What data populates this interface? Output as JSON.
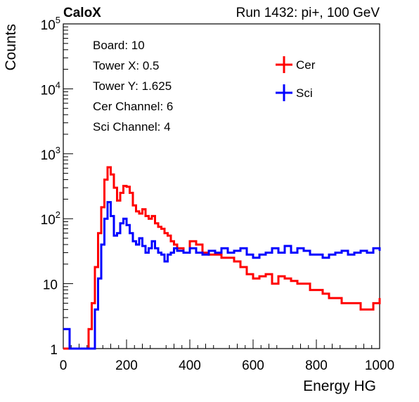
{
  "header": {
    "brand": "CaloX",
    "run_info": "Run 1432: pi+, 100 GeV"
  },
  "info_box": {
    "lines": [
      "Board: 10",
      "Tower X: 0.5",
      "Tower Y: 1.625",
      "Cer Channel: 6",
      "Sci Channel: 4"
    ]
  },
  "chart_data": {
    "type": "line",
    "title": "",
    "xlabel": "Energy HG",
    "ylabel": "Counts",
    "xlim": [
      0,
      1000
    ],
    "ylim": [
      1,
      100000
    ],
    "log_y": true,
    "grid": false,
    "legend_position": "top-right",
    "x_ticks": [
      0,
      200,
      400,
      600,
      800,
      1000
    ],
    "y_ticks": [
      {
        "value": 1,
        "base": "1",
        "exp": ""
      },
      {
        "value": 10,
        "base": "10",
        "exp": ""
      },
      {
        "value": 100,
        "base": "10",
        "exp": "2"
      },
      {
        "value": 1000,
        "base": "10",
        "exp": "3"
      },
      {
        "value": 10000,
        "base": "10",
        "exp": "4"
      },
      {
        "value": 100000,
        "base": "10",
        "exp": "5"
      }
    ],
    "x": [
      0,
      20,
      40,
      60,
      70,
      80,
      90,
      100,
      110,
      120,
      130,
      140,
      150,
      160,
      170,
      180,
      190,
      200,
      210,
      220,
      230,
      240,
      250,
      260,
      270,
      280,
      290,
      300,
      310,
      320,
      330,
      340,
      350,
      360,
      380,
      400,
      420,
      440,
      460,
      480,
      500,
      520,
      540,
      560,
      580,
      600,
      620,
      640,
      660,
      680,
      700,
      720,
      740,
      760,
      780,
      800,
      820,
      840,
      860,
      880,
      900,
      920,
      940,
      960,
      980,
      1000
    ],
    "series": [
      {
        "name": "Cer",
        "color": "#ff0000",
        "values": [
          1,
          1,
          1,
          1,
          1,
          2,
          5,
          18,
          60,
          150,
          400,
          620,
          480,
          300,
          190,
          250,
          320,
          310,
          250,
          160,
          130,
          120,
          140,
          110,
          100,
          110,
          85,
          75,
          70,
          60,
          55,
          45,
          40,
          35,
          30,
          45,
          40,
          30,
          28,
          28,
          25,
          25,
          22,
          18,
          14,
          12,
          13,
          14,
          10,
          13,
          12,
          11,
          10,
          10,
          8,
          8,
          7,
          6,
          6,
          5,
          5,
          5,
          4,
          4,
          5,
          6
        ]
      },
      {
        "name": "Sci",
        "color": "#0000ff",
        "values": [
          2,
          1,
          1,
          1,
          1,
          1,
          1,
          4,
          12,
          40,
          100,
          180,
          110,
          55,
          60,
          85,
          100,
          80,
          60,
          45,
          40,
          50,
          38,
          30,
          35,
          45,
          35,
          30,
          28,
          22,
          28,
          30,
          35,
          32,
          30,
          35,
          30,
          28,
          32,
          30,
          35,
          30,
          32,
          35,
          28,
          25,
          28,
          30,
          35,
          30,
          38,
          30,
          35,
          32,
          28,
          28,
          25,
          28,
          30,
          32,
          28,
          30,
          32,
          30,
          35,
          32
        ]
      }
    ]
  }
}
